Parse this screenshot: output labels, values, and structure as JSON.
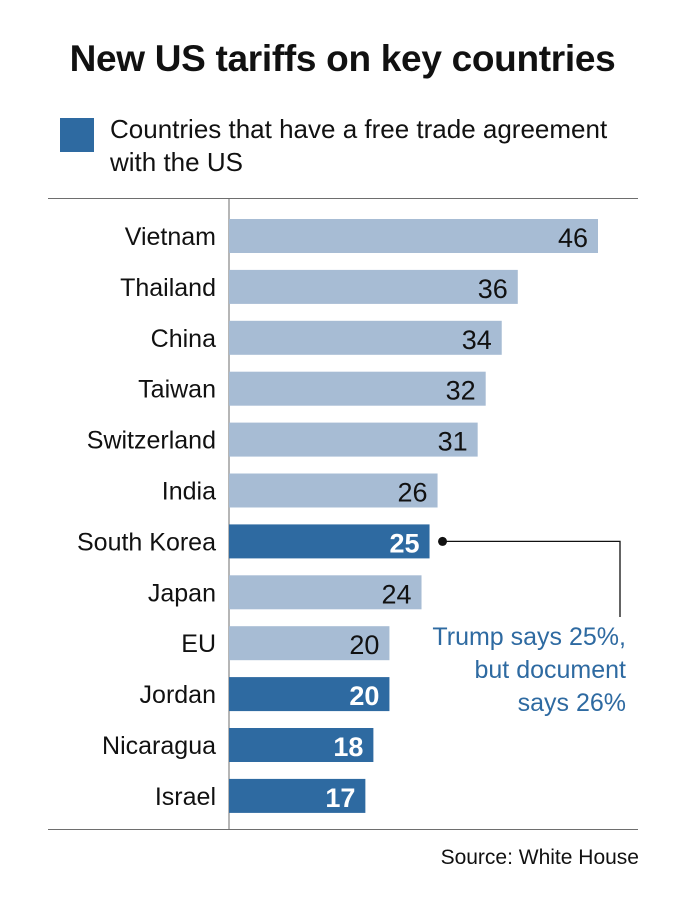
{
  "title": "New US tariffs on key countries",
  "legend": {
    "label": "Countries that have a free trade agreement with the US"
  },
  "source": "Source: White House",
  "colors": {
    "fta": "#2e6aa1",
    "other": "#a7bcd4",
    "annotation": "#2e6aa1"
  },
  "annotation": {
    "target": "South Korea",
    "lines": [
      "Trump says 25%,",
      "but document",
      "says 26%"
    ]
  },
  "chart_data": {
    "type": "bar",
    "orientation": "horizontal",
    "title": "New US tariffs on key countries",
    "categories": [
      "Vietnam",
      "Thailand",
      "China",
      "Taiwan",
      "Switzerland",
      "India",
      "South Korea",
      "Japan",
      "EU",
      "Jordan",
      "Nicaragua",
      "Israel"
    ],
    "values": [
      46,
      36,
      34,
      32,
      31,
      26,
      25,
      24,
      20,
      20,
      18,
      17
    ],
    "free_trade_agreement": [
      false,
      false,
      false,
      false,
      false,
      false,
      true,
      false,
      false,
      true,
      true,
      true
    ],
    "xlim": [
      0,
      52
    ],
    "grid": false,
    "legend_position": "top-left"
  }
}
